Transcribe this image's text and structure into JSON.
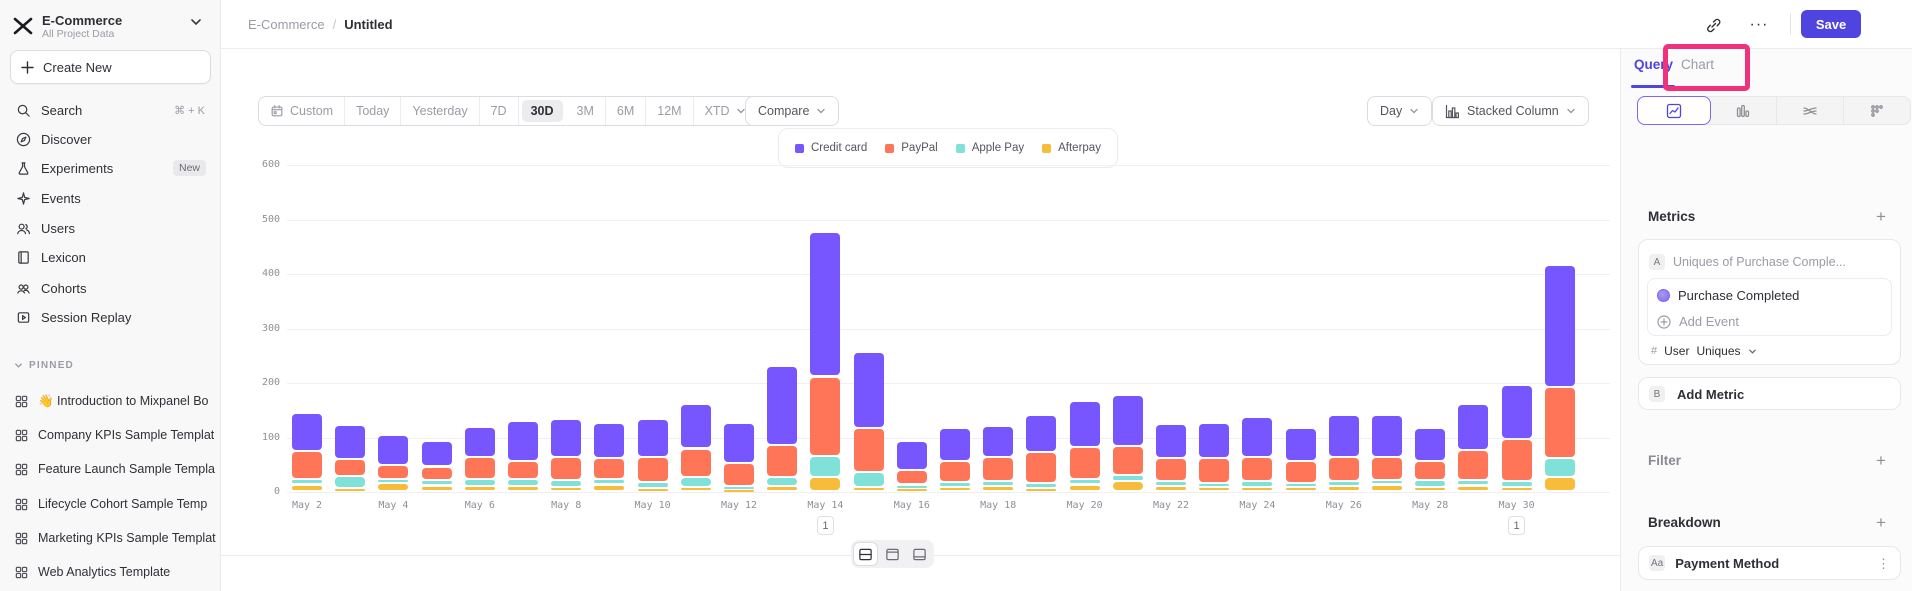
{
  "project": {
    "name": "E-Commerce",
    "subtitle": "All Project Data"
  },
  "sidebar": {
    "create_new": "Create New",
    "items": [
      {
        "icon": "search-icon",
        "label": "Search",
        "shortcut": "⌘ + K"
      },
      {
        "icon": "compass-icon",
        "label": "Discover"
      },
      {
        "icon": "flask-icon",
        "label": "Experiments",
        "badge": "New"
      },
      {
        "icon": "spark-icon",
        "label": "Events"
      },
      {
        "icon": "users-icon",
        "label": "Users"
      },
      {
        "icon": "book-icon",
        "label": "Lexicon"
      },
      {
        "icon": "cohorts-icon",
        "label": "Cohorts"
      },
      {
        "icon": "replay-icon",
        "label": "Session Replay"
      }
    ],
    "pinned_header": "PINNED",
    "pinned": [
      {
        "icon": "board-icon",
        "emoji": "👋",
        "label": "Introduction to Mixpanel Bo"
      },
      {
        "icon": "board-icon",
        "label": "Company KPIs Sample Templat"
      },
      {
        "icon": "board-icon",
        "label": "Feature Launch Sample Templa"
      },
      {
        "icon": "board-icon",
        "label": "Lifecycle Cohort Sample Temp"
      },
      {
        "icon": "board-icon",
        "label": "Marketing KPIs Sample Templat"
      },
      {
        "icon": "board-icon",
        "label": "Web Analytics Template"
      }
    ]
  },
  "header": {
    "breadcrumb": [
      "E-Commerce",
      "/",
      "Untitled"
    ],
    "more_label": "···",
    "save_label": "Save"
  },
  "toolbar": {
    "date_ranges": [
      "Custom",
      "Today",
      "Yesterday",
      "7D",
      "30D",
      "3M",
      "6M",
      "12M",
      "XTD"
    ],
    "active_range": "30D",
    "compare_label": "Compare",
    "granularity": "Day",
    "chart_type_label": "Stacked Column"
  },
  "bottom_toggles": [
    "split-view",
    "chart-only-view",
    "table-only-view"
  ],
  "panel": {
    "tabs": {
      "query": "Query",
      "chart": "Chart"
    },
    "highlight_color": "#f0327c",
    "chart_type_icons": [
      "line-chart",
      "bar-chart",
      "flow",
      "scatter"
    ],
    "metrics": {
      "title": "Metrics",
      "add": "+",
      "row_badge": "A",
      "row_label": "Uniques of Purchase Comple...",
      "event_name": "Purchase Completed",
      "add_event": "Add Event",
      "count_symbol": "#",
      "entity": "User",
      "aggregation": "Uniques",
      "add_metric_badge": "B",
      "add_metric": "Add Metric"
    },
    "filter": {
      "title": "Filter",
      "add": "+"
    },
    "breakdown": {
      "title": "Breakdown",
      "add": "+",
      "badge": "Aa",
      "property": "Payment Method",
      "kebab": "⋮"
    }
  },
  "chart_data": {
    "type": "bar",
    "stacked": true,
    "title": "",
    "xlabel": "",
    "ylabel": "",
    "ylim": [
      0,
      600
    ],
    "y_ticks": [
      0,
      100,
      200,
      300,
      400,
      500,
      600
    ],
    "grid": true,
    "legend_position": "top-center",
    "categories": [
      "May 2",
      "May 3",
      "May 4",
      "May 5",
      "May 6",
      "May 7",
      "May 8",
      "May 9",
      "May 10",
      "May 11",
      "May 12",
      "May 13",
      "May 14",
      "May 15",
      "May 16",
      "May 17",
      "May 18",
      "May 19",
      "May 20",
      "May 21",
      "May 22",
      "May 23",
      "May 24",
      "May 25",
      "May 26",
      "May 27",
      "May 28",
      "May 29",
      "May 30",
      "May 31"
    ],
    "x_tick_labels": [
      "May 2",
      "May 4",
      "May 6",
      "May 8",
      "May 10",
      "May 12",
      "May 14",
      "May 16",
      "May 18",
      "May 20",
      "May 22",
      "May 24",
      "May 26",
      "May 28",
      "May 30"
    ],
    "series": [
      {
        "name": "Credit card",
        "color": "#7856ff",
        "values": [
          70,
          64,
          55,
          47,
          56,
          74,
          71,
          65,
          71,
          82,
          73,
          145,
          265,
          140,
          54,
          60,
          58,
          68,
          85,
          95,
          63,
          65,
          73,
          60,
          78,
          78,
          60,
          85,
          100,
          225
        ]
      },
      {
        "name": "PayPal",
        "color": "#ff7557",
        "values": [
          52,
          30,
          26,
          25,
          40,
          33,
          42,
          38,
          46,
          53,
          43,
          60,
          145,
          80,
          26,
          39,
          44,
          57,
          58,
          52,
          42,
          45,
          44,
          40,
          44,
          42,
          35,
          55,
          77,
          130
        ]
      },
      {
        "name": "Apple Pay",
        "color": "#80e1d9",
        "values": [
          10,
          22,
          8,
          10,
          12,
          12,
          12,
          10,
          10,
          17,
          5,
          15,
          40,
          27,
          7,
          8,
          8,
          10,
          10,
          12,
          8,
          7,
          10,
          7,
          8,
          8,
          12,
          10,
          10,
          35
        ]
      },
      {
        "name": "Afterpay",
        "color": "#f8bc3b",
        "values": [
          12,
          6,
          14,
          10,
          10,
          10,
          8,
          12,
          6,
          8,
          4,
          10,
          25,
          8,
          5,
          8,
          10,
          5,
          12,
          18,
          10,
          8,
          8,
          8,
          10,
          12,
          8,
          10,
          8,
          25
        ]
      }
    ],
    "annotations": [
      {
        "label": "1",
        "category": "May 14"
      },
      {
        "label": "1",
        "category": "May 30"
      }
    ]
  }
}
